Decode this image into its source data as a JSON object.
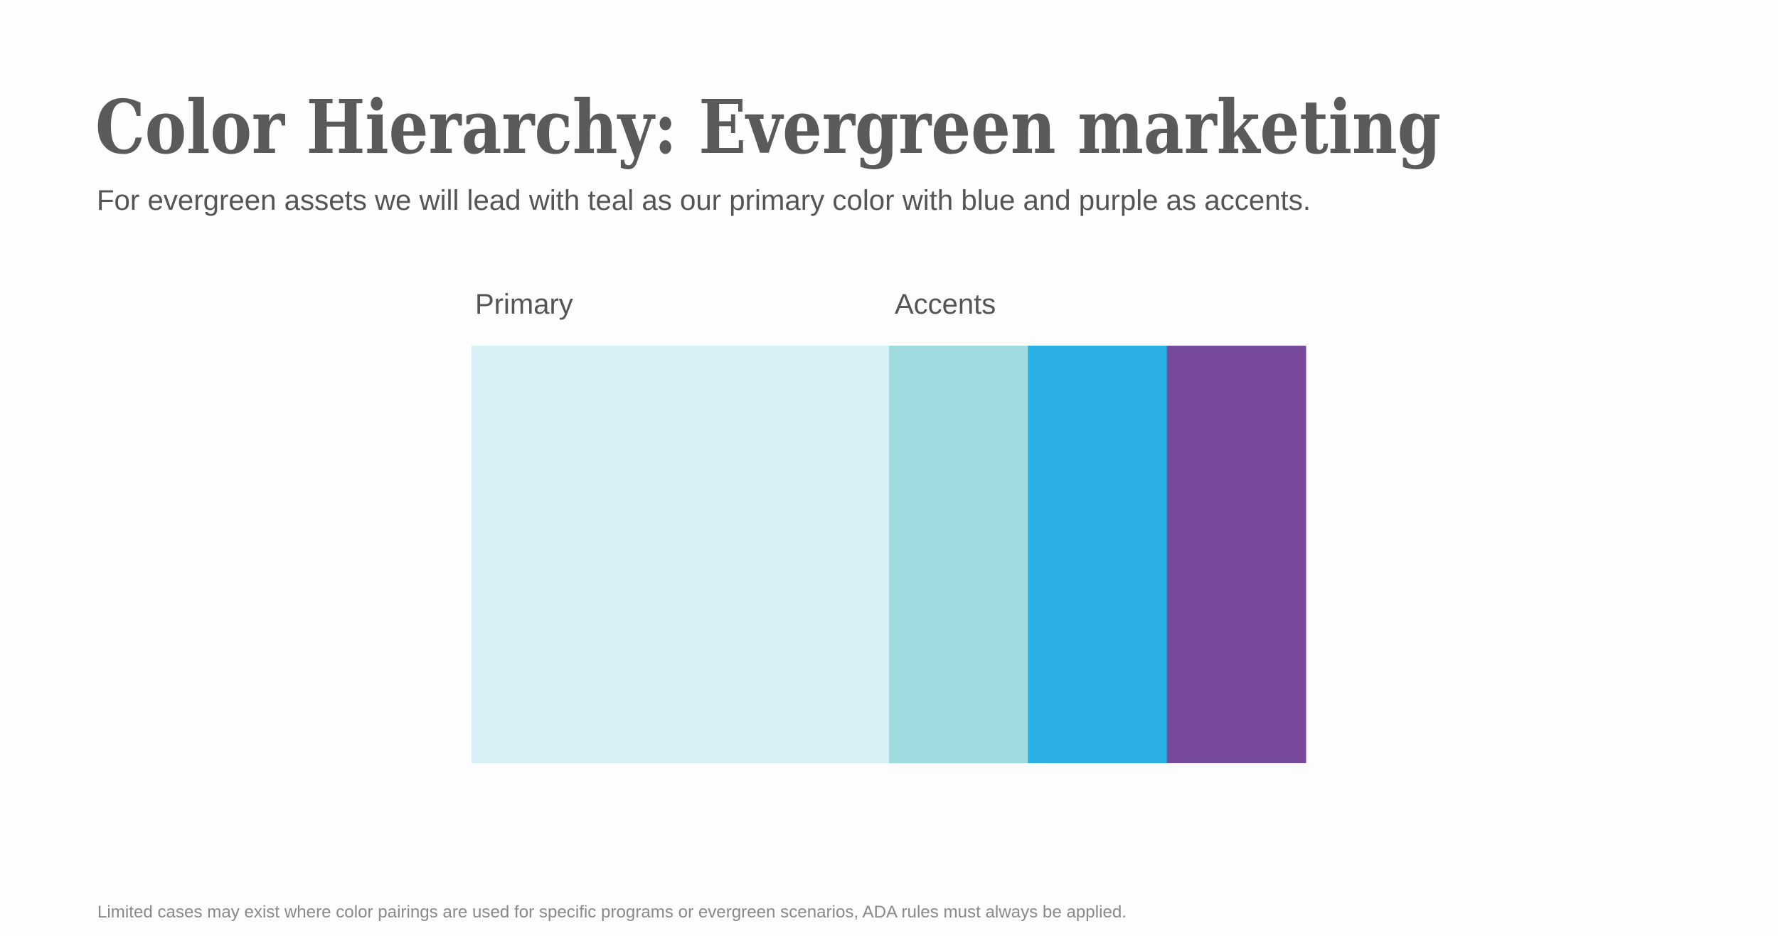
{
  "header": {
    "title": "Color Hierarchy: Evergreen marketing",
    "subtitle": "For evergreen assets we will lead with teal as our primary color with blue and purple as accents."
  },
  "palette": {
    "primary": {
      "label": "Primary",
      "colors": [
        "#d8eff6"
      ]
    },
    "accents": {
      "label": "Accents",
      "colors": [
        "#9fdade",
        "#2aafe3",
        "#774a9b"
      ]
    }
  },
  "footnote": "Limited cases may exist where color pairings are used for specific programs or evergreen scenarios, ADA rules must always be applied."
}
